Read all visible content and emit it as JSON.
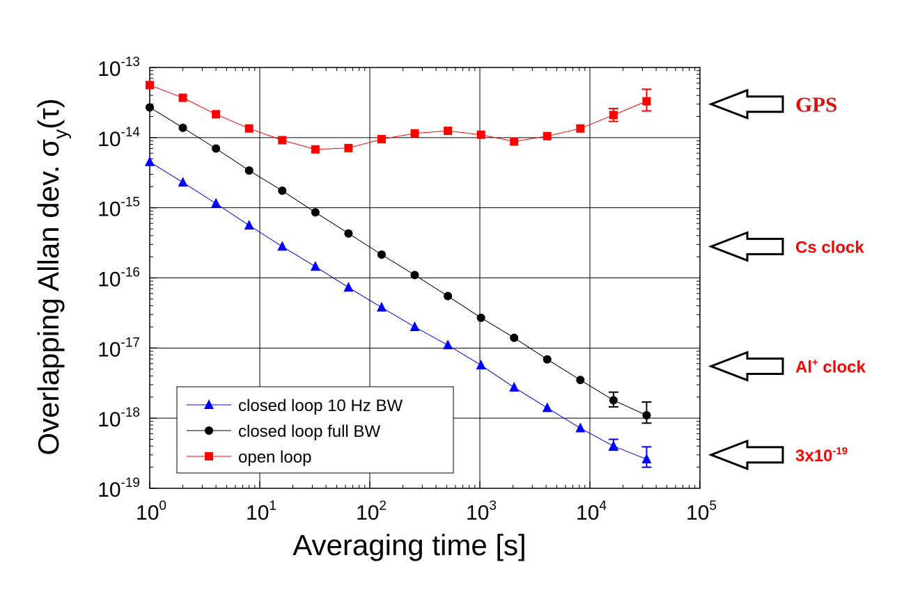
{
  "chart_data": {
    "type": "scatter",
    "xscale": "log",
    "yscale": "log",
    "xlim": [
      1,
      100000
    ],
    "ylim": [
      1e-19,
      1e-13
    ],
    "grid": true,
    "xlabel": "Averaging time [s]",
    "ylabel": "Overlapping Allan dev. σy(τ)",
    "ylabel_parts": {
      "text": "Overlapping Allan dev. ",
      "sigma": "σ",
      "sub": "y",
      "tau": "(τ)"
    },
    "x_ticks": [
      {
        "base": "10",
        "exp": "0",
        "value": 1
      },
      {
        "base": "10",
        "exp": "1",
        "value": 10
      },
      {
        "base": "10",
        "exp": "2",
        "value": 100
      },
      {
        "base": "10",
        "exp": "3",
        "value": 1000
      },
      {
        "base": "10",
        "exp": "4",
        "value": 10000
      },
      {
        "base": "10",
        "exp": "5",
        "value": 100000
      }
    ],
    "y_ticks": [
      {
        "base": "10",
        "exp": "-19",
        "value": 1e-19
      },
      {
        "base": "10",
        "exp": "-18",
        "value": 1e-18
      },
      {
        "base": "10",
        "exp": "-17",
        "value": 1e-17
      },
      {
        "base": "10",
        "exp": "-16",
        "value": 1e-16
      },
      {
        "base": "10",
        "exp": "-15",
        "value": 1e-15
      },
      {
        "base": "10",
        "exp": "-14",
        "value": 1e-14
      },
      {
        "base": "10",
        "exp": "-13",
        "value": 1e-13
      }
    ],
    "legend_position": "bottom-left",
    "series": [
      {
        "name": "closed loop 10 Hz BW",
        "color": "#0000ff",
        "marker": "triangle",
        "x": [
          1,
          2,
          4,
          8,
          16,
          32,
          64,
          128,
          256,
          512,
          1024,
          2048,
          4096,
          8192,
          16384,
          32768
        ],
        "y": [
          4.5e-15,
          2.3e-15,
          1.15e-15,
          5.6e-16,
          2.8e-16,
          1.45e-16,
          7.3e-17,
          3.8e-17,
          2e-17,
          1.1e-17,
          5.7e-18,
          2.75e-18,
          1.4e-18,
          7.2e-19,
          4e-19,
          2.6e-19
        ],
        "err_low": [
          null,
          null,
          null,
          null,
          null,
          null,
          null,
          null,
          null,
          null,
          null,
          null,
          null,
          null,
          3.5e-19,
          2e-19
        ],
        "err_high": [
          null,
          null,
          null,
          null,
          null,
          null,
          null,
          null,
          null,
          null,
          null,
          null,
          null,
          null,
          5e-19,
          3.9e-19
        ]
      },
      {
        "name": "closed loop full BW",
        "color": "#000000",
        "marker": "circle",
        "x": [
          1,
          2,
          4,
          8,
          16,
          32,
          64,
          128,
          256,
          512,
          1024,
          2048,
          4096,
          8192,
          16384,
          32768
        ],
        "y": [
          2.7e-14,
          1.38e-14,
          7e-15,
          3.4e-15,
          1.75e-15,
          8.6e-16,
          4.3e-16,
          2.15e-16,
          1.1e-16,
          5.5e-17,
          2.7e-17,
          1.4e-17,
          6.9e-18,
          3.5e-18,
          1.8e-18,
          1.1e-18
        ],
        "err_low": [
          null,
          null,
          null,
          null,
          null,
          null,
          null,
          null,
          null,
          null,
          null,
          null,
          null,
          null,
          1.45e-18,
          8.5e-19
        ],
        "err_high": [
          null,
          null,
          null,
          null,
          null,
          null,
          null,
          null,
          null,
          null,
          null,
          null,
          null,
          null,
          2.35e-18,
          1.7e-18
        ]
      },
      {
        "name": "open loop",
        "color": "#ff0000",
        "marker": "square",
        "x": [
          1,
          2,
          4,
          8,
          16,
          32,
          64,
          128,
          256,
          512,
          1024,
          2048,
          4096,
          8192,
          16384,
          32768
        ],
        "y": [
          5.6e-14,
          3.7e-14,
          2.15e-14,
          1.35e-14,
          9.2e-15,
          6.8e-15,
          7.1e-15,
          9.5e-15,
          1.15e-14,
          1.25e-14,
          1.1e-14,
          8.8e-15,
          1.05e-14,
          1.35e-14,
          2.1e-14,
          3.3e-14
        ],
        "err_low": [
          null,
          null,
          null,
          null,
          null,
          null,
          null,
          null,
          null,
          null,
          null,
          null,
          null,
          null,
          1.7e-14,
          2.4e-14
        ],
        "err_high": [
          null,
          null,
          null,
          null,
          null,
          null,
          null,
          null,
          null,
          null,
          null,
          null,
          null,
          null,
          2.6e-14,
          4.9e-14
        ]
      }
    ],
    "annotations": [
      {
        "text": "GPS",
        "value": 3e-14,
        "color": "#dd1111",
        "style": "serif"
      },
      {
        "text": "Cs clock",
        "value": 2.8e-16,
        "color": "#ff0000",
        "style": "sans"
      },
      {
        "text": "Al+ clock",
        "base": "Al",
        "sup": "+",
        "rest": " clock",
        "value": 5.5e-18,
        "color": "#ff0000",
        "style": "sans"
      },
      {
        "text": "3x10-19",
        "base": "3x10",
        "sup": "-19",
        "rest": "",
        "value": 3e-19,
        "color": "#ff0000",
        "style": "sans"
      }
    ]
  }
}
